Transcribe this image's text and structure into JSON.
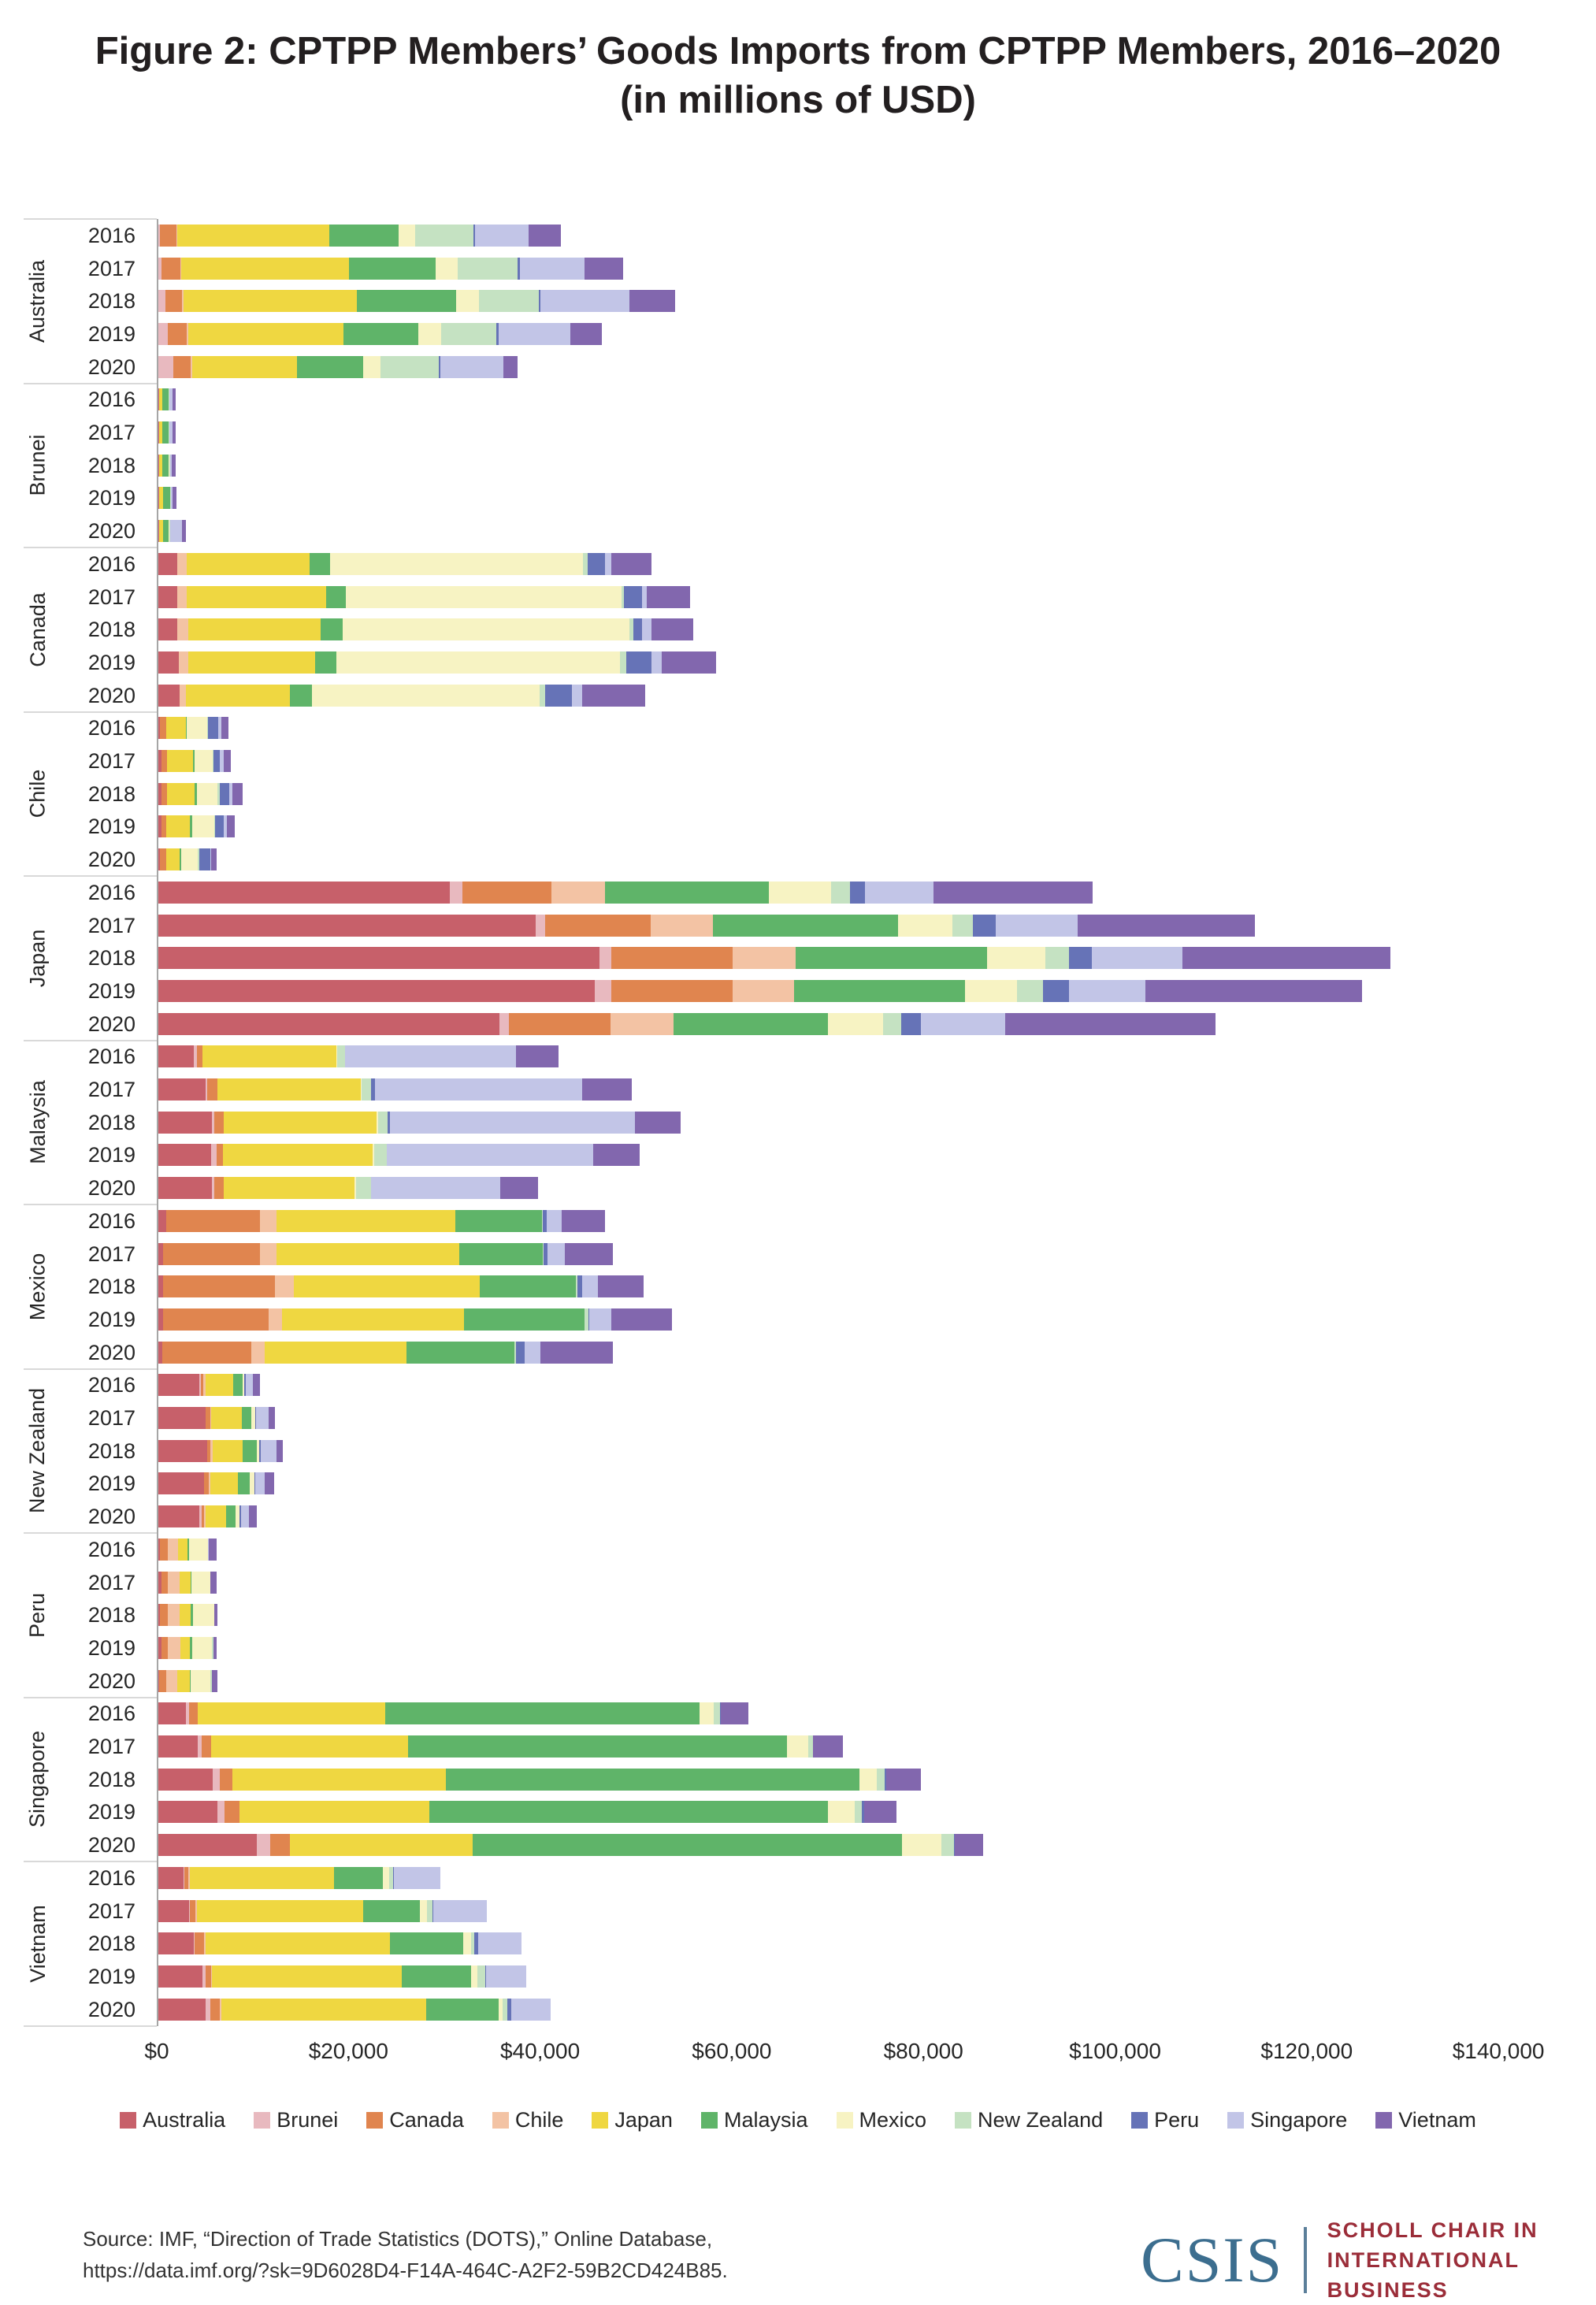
{
  "title": {
    "line1": "Figure 2: CPTPP Members’ Goods Imports from CPTPP Members, 2016–2020",
    "line2": "(in millions of USD)"
  },
  "axis": {
    "ticks": [
      "$0",
      "$20,000",
      "$40,000",
      "$60,000",
      "$80,000",
      "$100,000",
      "$120,000",
      "$140,000"
    ],
    "max": 140000
  },
  "legend": [
    {
      "label": "Australia",
      "color": "#c7606a"
    },
    {
      "label": "Brunei",
      "color": "#e8b9bf"
    },
    {
      "label": "Canada",
      "color": "#e0854f"
    },
    {
      "label": "Chile",
      "color": "#f3c3a4"
    },
    {
      "label": "Japan",
      "color": "#efd741"
    },
    {
      "label": "Malaysia",
      "color": "#5fb469"
    },
    {
      "label": "Mexico",
      "color": "#f7f3c3"
    },
    {
      "label": "New Zealand",
      "color": "#c5e2c2"
    },
    {
      "label": "Peru",
      "color": "#6673b7"
    },
    {
      "label": "Singapore",
      "color": "#c2c5e7"
    },
    {
      "label": "Vietnam",
      "color": "#8267ae"
    }
  ],
  "chart_data": {
    "type": "bar",
    "orientation": "horizontal-stacked",
    "title": "Figure 2: CPTPP Members’ Goods Imports from CPTPP Members, 2016–2020 (in millions of USD)",
    "unit": "millions of USD",
    "xlim": [
      0,
      140000
    ],
    "grid": false,
    "legend_position": "bottom",
    "years": [
      "2016",
      "2017",
      "2018",
      "2019",
      "2020"
    ],
    "partners": [
      "Australia",
      "Brunei",
      "Canada",
      "Chile",
      "Japan",
      "Malaysia",
      "Mexico",
      "New Zealand",
      "Peru",
      "Singapore",
      "Vietnam"
    ],
    "groups": [
      {
        "country": "Australia",
        "rows": [
          {
            "year": "2016",
            "values": [
              0,
              200,
              1700,
              100,
              15800,
              7300,
              1700,
              6100,
              150,
              5600,
              3400
            ]
          },
          {
            "year": "2017",
            "values": [
              0,
              300,
              2000,
              100,
              17500,
              9000,
              2300,
              6300,
              200,
              6800,
              4000
            ]
          },
          {
            "year": "2018",
            "values": [
              0,
              700,
              1800,
              100,
              18100,
              10400,
              2400,
              6200,
              150,
              9300,
              4800
            ]
          },
          {
            "year": "2019",
            "values": [
              0,
              1000,
              2000,
              100,
              16200,
              7800,
              2400,
              5800,
              200,
              7500,
              3300
            ]
          },
          {
            "year": "2020",
            "values": [
              0,
              1600,
              1800,
              100,
              11000,
              6900,
              1800,
              6100,
              100,
              6600,
              1500
            ]
          }
        ]
      },
      {
        "country": "Brunei",
        "rows": [
          {
            "year": "2016",
            "values": [
              50,
              0,
              50,
              0,
              350,
              600,
              50,
              50,
              0,
              300,
              400
            ]
          },
          {
            "year": "2017",
            "values": [
              50,
              0,
              50,
              0,
              350,
              600,
              50,
              50,
              0,
              350,
              350
            ]
          },
          {
            "year": "2018",
            "values": [
              50,
              0,
              50,
              0,
              350,
              650,
              50,
              50,
              0,
              200,
              450
            ]
          },
          {
            "year": "2019",
            "values": [
              50,
              0,
              50,
              0,
              400,
              700,
              50,
              50,
              0,
              200,
              400
            ]
          },
          {
            "year": "2020",
            "values": [
              50,
              0,
              50,
              0,
              400,
              600,
              50,
              50,
              0,
              1300,
              350
            ]
          }
        ]
      },
      {
        "country": "Canada",
        "rows": [
          {
            "year": "2016",
            "values": [
              2000,
              0,
              0,
              1000,
              12800,
              2100,
              26400,
              500,
              1800,
              700,
              4200
            ]
          },
          {
            "year": "2017",
            "values": [
              2000,
              0,
              0,
              1000,
              14500,
              2100,
              28700,
              300,
              1900,
              500,
              4500
            ]
          },
          {
            "year": "2018",
            "values": [
              2000,
              0,
              0,
              1100,
              13800,
              2300,
              30000,
              400,
              900,
              1000,
              4300
            ]
          },
          {
            "year": "2019",
            "values": [
              2100,
              0,
              0,
              1000,
              13300,
              2200,
              29600,
              600,
              2700,
              1000,
              5700
            ]
          },
          {
            "year": "2020",
            "values": [
              2200,
              0,
              0,
              700,
              10800,
              2300,
              23800,
              600,
              2800,
              1000,
              6600
            ]
          }
        ]
      },
      {
        "country": "Chile",
        "rows": [
          {
            "year": "2016",
            "values": [
              200,
              0,
              600,
              0,
              2100,
              100,
              2100,
              50,
              1100,
              300,
              750
            ]
          },
          {
            "year": "2017",
            "values": [
              300,
              0,
              600,
              0,
              2700,
              150,
              1900,
              100,
              700,
              400,
              700
            ]
          },
          {
            "year": "2018",
            "values": [
              300,
              0,
              600,
              0,
              2900,
              200,
              2200,
              200,
              1000,
              300,
              1100
            ]
          },
          {
            "year": "2019",
            "values": [
              300,
              0,
              500,
              0,
              2500,
              200,
              2300,
              100,
              900,
              350,
              800
            ]
          },
          {
            "year": "2020",
            "values": [
              200,
              0,
              600,
              0,
              1400,
              200,
              1700,
              200,
              1100,
              100,
              550
            ]
          }
        ]
      },
      {
        "country": "Japan",
        "rows": [
          {
            "year": "2016",
            "values": [
              30400,
              1300,
              9300,
              5600,
              0,
              17100,
              6500,
              2000,
              1500,
              7200,
              16600
            ]
          },
          {
            "year": "2017",
            "values": [
              39400,
              1000,
              11000,
              6500,
              0,
              19300,
              5700,
              2100,
              2400,
              8500,
              18500
            ]
          },
          {
            "year": "2018",
            "values": [
              46000,
              1300,
              12600,
              6600,
              0,
              20000,
              6100,
              2400,
              2400,
              9500,
              21700
            ]
          },
          {
            "year": "2019",
            "values": [
              45500,
              1800,
              12600,
              6400,
              0,
              17900,
              5400,
              2700,
              2700,
              8000,
              22600
            ]
          },
          {
            "year": "2020",
            "values": [
              35600,
              1000,
              10600,
              6600,
              0,
              16100,
              5700,
              1900,
              2100,
              8800,
              21900
            ]
          }
        ]
      },
      {
        "country": "Malaysia",
        "rows": [
          {
            "year": "2016",
            "values": [
              3700,
              300,
              600,
              0,
              14000,
              0,
              100,
              800,
              0,
              17800,
              4500
            ]
          },
          {
            "year": "2017",
            "values": [
              4900,
              200,
              1100,
              0,
              14900,
              0,
              100,
              1000,
              400,
              21600,
              5200
            ]
          },
          {
            "year": "2018",
            "values": [
              5600,
              200,
              1000,
              0,
              16000,
              0,
              100,
              1000,
              300,
              25500,
              4800
            ]
          },
          {
            "year": "2019",
            "values": [
              5500,
              600,
              600,
              0,
              15700,
              0,
              100,
              1300,
              0,
              21600,
              4800
            ]
          },
          {
            "year": "2020",
            "values": [
              5600,
              200,
              1000,
              0,
              13700,
              0,
              100,
              1600,
              0,
              13500,
              3900
            ]
          }
        ]
      },
      {
        "country": "Mexico",
        "rows": [
          {
            "year": "2016",
            "values": [
              800,
              0,
              9800,
              1700,
              18700,
              9000,
              0,
              100,
              400,
              1600,
              4500
            ]
          },
          {
            "year": "2017",
            "values": [
              500,
              0,
              10100,
              1700,
              19100,
              8700,
              0,
              100,
              400,
              1800,
              5000
            ]
          },
          {
            "year": "2018",
            "values": [
              500,
              0,
              11700,
              1900,
              19400,
              10100,
              0,
              100,
              500,
              1700,
              4700
            ]
          },
          {
            "year": "2019",
            "values": [
              500,
              0,
              11000,
              1400,
              19000,
              12600,
              0,
              400,
              100,
              2300,
              6300
            ]
          },
          {
            "year": "2020",
            "values": [
              400,
              0,
              9300,
              1400,
              14800,
              11300,
              0,
              100,
              900,
              1700,
              7500
            ]
          }
        ]
      },
      {
        "country": "New Zealand",
        "rows": [
          {
            "year": "2016",
            "values": [
              4300,
              100,
              300,
              200,
              2900,
              1000,
              200,
              0,
              150,
              700,
              800
            ]
          },
          {
            "year": "2017",
            "values": [
              4900,
              0,
              500,
              100,
              3200,
              1000,
              400,
              0,
              100,
              1300,
              700
            ]
          },
          {
            "year": "2018",
            "values": [
              5100,
              0,
              300,
              300,
              3100,
              1500,
              200,
              0,
              200,
              1600,
              700
            ]
          },
          {
            "year": "2019",
            "values": [
              4800,
              0,
              500,
              100,
              2900,
              1200,
              500,
              0,
              100,
              1000,
              1000
            ]
          },
          {
            "year": "2020",
            "values": [
              4300,
              200,
              300,
              100,
              2200,
              1000,
              400,
              0,
              100,
              900,
              750
            ]
          }
        ]
      },
      {
        "country": "Peru",
        "rows": [
          {
            "year": "2016",
            "values": [
              200,
              0,
              750,
              1100,
              1000,
              200,
              1900,
              50,
              0,
              100,
              800
            ]
          },
          {
            "year": "2017",
            "values": [
              330,
              0,
              640,
              1250,
              1170,
              100,
              1950,
              0,
              0,
              0,
              670
            ]
          },
          {
            "year": "2018",
            "values": [
              200,
              0,
              800,
              1200,
              1200,
              200,
              2200,
              0,
              0,
              0,
              330
            ]
          },
          {
            "year": "2019",
            "values": [
              300,
              0,
              700,
              1300,
              1000,
              200,
              2100,
              150,
              0,
              0,
              350
            ]
          },
          {
            "year": "2020",
            "values": [
              100,
              0,
              700,
              1200,
              1300,
              100,
              2000,
              200,
              0,
              0,
              600
            ]
          }
        ]
      },
      {
        "country": "Singapore",
        "rows": [
          {
            "year": "2016",
            "values": [
              2900,
              300,
              900,
              50,
              19500,
              32800,
              1500,
              700,
              50,
              0,
              2900
            ]
          },
          {
            "year": "2017",
            "values": [
              4100,
              400,
              1000,
              0,
              20600,
              39500,
              2200,
              500,
              0,
              0,
              3100
            ]
          },
          {
            "year": "2018",
            "values": [
              5700,
              700,
              1300,
              0,
              22300,
              43200,
              1800,
              800,
              200,
              0,
              3600
            ]
          },
          {
            "year": "2019",
            "values": [
              6200,
              700,
              1600,
              0,
              19800,
              41600,
              2800,
              700,
              300,
              0,
              3300
            ]
          },
          {
            "year": "2020",
            "values": [
              10300,
              1400,
              2000,
              0,
              19100,
              44800,
              4100,
              1300,
              100,
              0,
              3000
            ]
          }
        ]
      },
      {
        "country": "Vietnam",
        "rows": [
          {
            "year": "2016",
            "values": [
              2600,
              100,
              450,
              100,
              15100,
              5100,
              600,
              450,
              50,
              4900,
              0
            ]
          },
          {
            "year": "2017",
            "values": [
              3200,
              100,
              600,
              100,
              17400,
              5900,
              700,
              600,
              100,
              5600,
              0
            ]
          },
          {
            "year": "2018",
            "values": [
              3700,
              100,
              1000,
              100,
              19300,
              7600,
              800,
              400,
              400,
              4500,
              0
            ]
          },
          {
            "year": "2019",
            "values": [
              4600,
              300,
              600,
              100,
              19800,
              7200,
              700,
              800,
              100,
              4200,
              0
            ]
          },
          {
            "year": "2020",
            "values": [
              4900,
              550,
              1000,
              100,
              21400,
              7600,
              400,
              500,
              400,
              4100,
              0
            ]
          }
        ]
      }
    ]
  },
  "footer": {
    "source_line1": "Source: IMF, “Direction of Trade Statistics (DOTS),” Online Database,",
    "source_line2": "https://data.imf.org/?sk=9D6028D4-F14A-464C-A2F2-59B2CD424B85.",
    "logo": {
      "csis": "CSIS",
      "line1": "SCHOLL CHAIR IN",
      "line2": "INTERNATIONAL BUSINESS"
    }
  }
}
